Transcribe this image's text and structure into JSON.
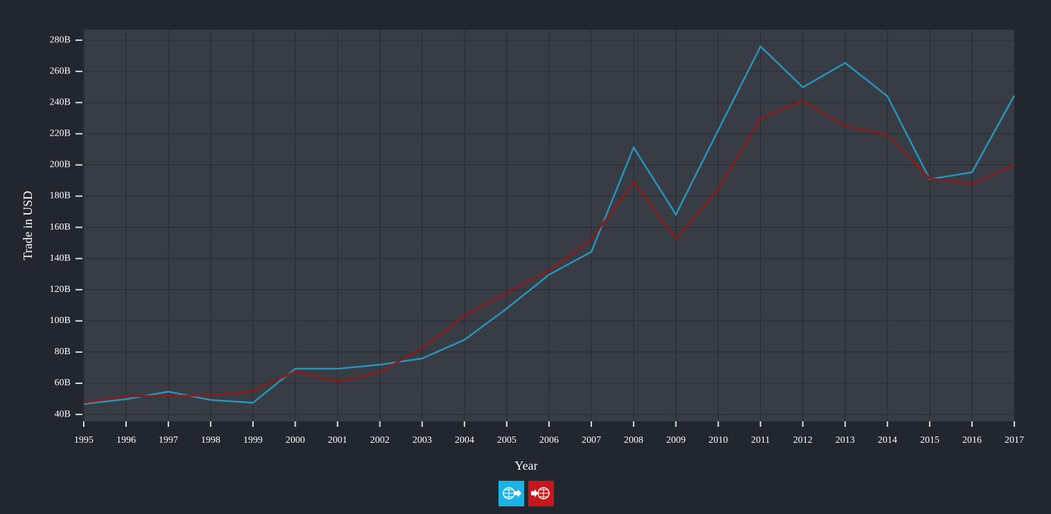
{
  "chart_data": {
    "type": "line",
    "x_label": "Year",
    "y_label": "Trade in USD",
    "x": [
      1995,
      1996,
      1997,
      1998,
      1999,
      2000,
      2001,
      2002,
      2003,
      2004,
      2005,
      2006,
      2007,
      2008,
      2009,
      2010,
      2011,
      2012,
      2013,
      2014,
      2015,
      2016,
      2017
    ],
    "series": [
      {
        "color": "#2a93b8",
        "values": [
          46.7,
          49.8,
          54.6,
          49.3,
          47.5,
          69.3,
          69.3,
          71.9,
          75.9,
          87.9,
          107.9,
          129.6,
          144.3,
          211.2,
          168.2,
          222.3,
          276,
          249.8,
          265.4,
          244.1,
          190.8,
          195.3,
          244.5
        ]
      },
      {
        "color": "#8e1a1a",
        "values": [
          47.5,
          51.5,
          52,
          52,
          55.1,
          67.5,
          60.9,
          67.1,
          82.6,
          103,
          118.1,
          132.3,
          152.2,
          189.1,
          152.7,
          184.2,
          229.9,
          241,
          225,
          219.2,
          191.3,
          187.7,
          200.2
        ]
      }
    ],
    "xlim": [
      1995,
      2017
    ],
    "xticks": [
      1995,
      1996,
      1997,
      1998,
      1999,
      2000,
      2001,
      2002,
      2003,
      2004,
      2005,
      2006,
      2007,
      2008,
      2009,
      2010,
      2011,
      2012,
      2013,
      2014,
      2015,
      2016,
      2017
    ],
    "ylim": [
      35.6,
      286.7
    ],
    "yticks": [
      {
        "value": 40,
        "label": "40B"
      },
      {
        "value": 60,
        "label": "60B"
      },
      {
        "value": 80,
        "label": "80B"
      },
      {
        "value": 100,
        "label": "100B"
      },
      {
        "value": 120,
        "label": "120B"
      },
      {
        "value": 140,
        "label": "140B"
      },
      {
        "value": 160,
        "label": "160B"
      },
      {
        "value": 180,
        "label": "180B"
      },
      {
        "value": 200,
        "label": "200B"
      },
      {
        "value": 220,
        "label": "220B"
      },
      {
        "value": 240,
        "label": "240B"
      },
      {
        "value": 260,
        "label": "260B"
      },
      {
        "value": 280,
        "label": "280B"
      }
    ],
    "grid": true
  }
}
